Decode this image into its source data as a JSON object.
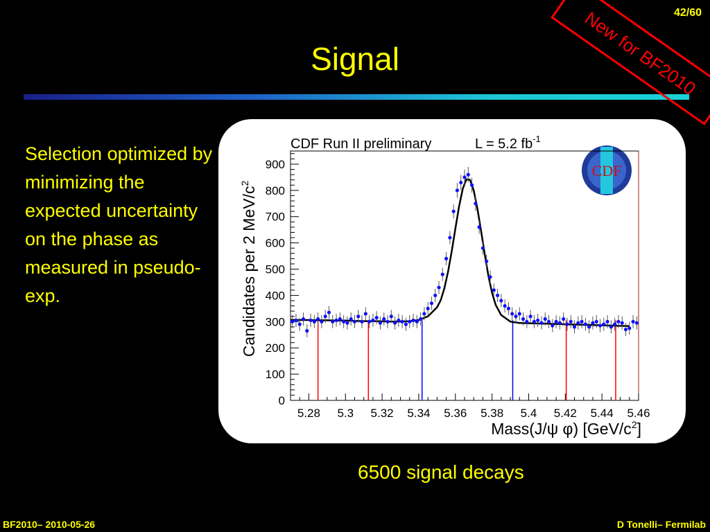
{
  "slide": {
    "number": "42/60",
    "title": "Signal",
    "stamp": "New for BF2010",
    "bullet": "Selection optimized by minimizing the expected uncertainty on the phase as measured in pseudo-exp.",
    "caption": "6500 signal decays",
    "footer_left": "BF2010– 2010-05-26",
    "footer_right": "D Tonelli– Fermilab"
  },
  "colors": {
    "background": "#000000",
    "text": "#ffff00",
    "stamp": "#ff0000",
    "data_points": "#1010ff",
    "fit_line": "#000000",
    "sideband_lines": "#ff0000",
    "signal_window_lines": "#0000ff"
  },
  "chart_data": {
    "type": "scatter",
    "title": "CDF Run II preliminary",
    "luminosity_label": "L = 5.2 fb",
    "luminosity_exp": "-1",
    "logo_text": "CDF",
    "xlabel": "Mass(J/ψ φ) [GeV/c",
    "xlabel_suffix": "]",
    "ylabel": "Candidates per 2 MeV/c",
    "xlim": [
      5.27,
      5.46
    ],
    "ylim": [
      0,
      950
    ],
    "xticks": [
      5.28,
      5.3,
      5.32,
      5.34,
      5.36,
      5.38,
      5.4,
      5.42,
      5.44,
      5.46
    ],
    "xtick_labels": [
      "5.28",
      "5.3",
      "5.32",
      "5.34",
      "5.36",
      "5.38",
      "5.4",
      "5.42",
      "5.44",
      "5.46"
    ],
    "yticks": [
      0,
      100,
      200,
      300,
      400,
      500,
      600,
      700,
      800,
      900
    ],
    "ytick_labels": [
      "0",
      "100",
      "200",
      "300",
      "400",
      "500",
      "600",
      "700",
      "800",
      "900"
    ],
    "grid": false,
    "series": [
      {
        "kind": "data",
        "x": [
          5.271,
          5.273,
          5.275,
          5.277,
          5.279,
          5.281,
          5.283,
          5.285,
          5.287,
          5.289,
          5.291,
          5.293,
          5.295,
          5.297,
          5.299,
          5.301,
          5.303,
          5.305,
          5.307,
          5.309,
          5.311,
          5.313,
          5.315,
          5.317,
          5.319,
          5.321,
          5.323,
          5.325,
          5.327,
          5.329,
          5.331,
          5.333,
          5.335,
          5.337,
          5.339,
          5.341,
          5.343,
          5.345,
          5.347,
          5.349,
          5.351,
          5.353,
          5.355,
          5.357,
          5.359,
          5.361,
          5.363,
          5.365,
          5.367,
          5.369,
          5.371,
          5.373,
          5.375,
          5.377,
          5.379,
          5.381,
          5.383,
          5.385,
          5.387,
          5.389,
          5.391,
          5.393,
          5.395,
          5.397,
          5.399,
          5.401,
          5.403,
          5.405,
          5.407,
          5.409,
          5.411,
          5.413,
          5.415,
          5.417,
          5.419,
          5.421,
          5.423,
          5.425,
          5.427,
          5.429,
          5.431,
          5.433,
          5.435,
          5.437,
          5.439,
          5.441,
          5.443,
          5.445,
          5.447,
          5.449,
          5.451,
          5.453,
          5.455,
          5.457,
          5.459
        ],
        "y": [
          300,
          305,
          290,
          310,
          265,
          305,
          300,
          310,
          300,
          320,
          335,
          300,
          305,
          310,
          300,
          295,
          310,
          300,
          320,
          300,
          330,
          300,
          305,
          315,
          295,
          310,
          300,
          320,
          295,
          305,
          300,
          290,
          300,
          305,
          300,
          310,
          330,
          350,
          370,
          400,
          430,
          480,
          540,
          620,
          720,
          800,
          830,
          850,
          860,
          820,
          750,
          660,
          580,
          530,
          470,
          420,
          400,
          380,
          360,
          350,
          330,
          320,
          330,
          310,
          300,
          320,
          300,
          305,
          295,
          310,
          300,
          285,
          300,
          295,
          310,
          290,
          300,
          280,
          295,
          300,
          290,
          280,
          295,
          300,
          285,
          290,
          300,
          280,
          290,
          300,
          295,
          270,
          275,
          300,
          295
        ],
        "error": 25
      },
      {
        "kind": "fit",
        "x": [
          5.27,
          5.275,
          5.28,
          5.285,
          5.29,
          5.295,
          5.3,
          5.305,
          5.31,
          5.315,
          5.32,
          5.325,
          5.33,
          5.335,
          5.34,
          5.345,
          5.35,
          5.352,
          5.354,
          5.356,
          5.358,
          5.36,
          5.362,
          5.364,
          5.366,
          5.368,
          5.37,
          5.372,
          5.374,
          5.376,
          5.378,
          5.38,
          5.382,
          5.385,
          5.39,
          5.395,
          5.4,
          5.405,
          5.41,
          5.415,
          5.42,
          5.425,
          5.43,
          5.435,
          5.44,
          5.445,
          5.45,
          5.455
        ],
        "y": [
          307,
          306,
          306,
          305,
          305,
          304,
          304,
          303,
          302,
          302,
          301,
          300,
          300,
          302,
          306,
          320,
          355,
          382,
          427,
          490,
          568,
          655,
          739,
          806,
          842,
          840,
          800,
          731,
          646,
          557,
          476,
          410,
          364,
          325,
          300,
          295,
          294,
          293,
          292,
          291,
          290,
          289,
          288,
          287,
          286,
          285,
          284,
          283
        ]
      }
    ],
    "vertical_lines": [
      {
        "x": 5.285,
        "role": "sideband",
        "color": "#ff0000"
      },
      {
        "x": 5.3125,
        "role": "sideband",
        "color": "#ff0000"
      },
      {
        "x": 5.3418,
        "role": "signal-window",
        "color": "#0000ff"
      },
      {
        "x": 5.3913,
        "role": "signal-window",
        "color": "#0000ff"
      },
      {
        "x": 5.4205,
        "role": "sideband",
        "color": "#ff0000"
      },
      {
        "x": 5.4475,
        "role": "sideband",
        "color": "#ff0000"
      }
    ]
  }
}
